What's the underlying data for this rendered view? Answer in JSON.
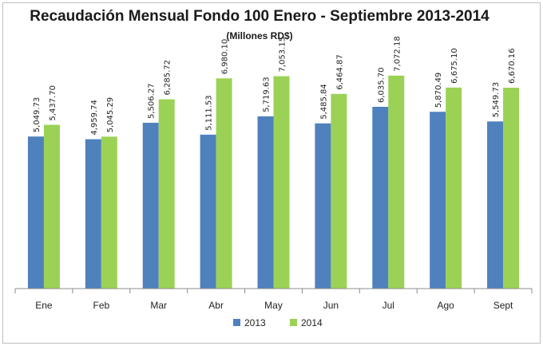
{
  "chart_data": {
    "type": "bar",
    "title": "Recaudación Mensual Fondo 100 Enero - Septiembre 2013-2014",
    "subtitle": "(Millones RD$)",
    "categories": [
      "Ene",
      "Feb",
      "Mar",
      "Abr",
      "May",
      "Jun",
      "Jul",
      "Ago",
      "Sept"
    ],
    "series": [
      {
        "name": "2013",
        "color": "#4f81bd",
        "values": [
          5049.73,
          4959.74,
          5506.27,
          5111.53,
          5719.63,
          5485.84,
          6035.7,
          5870.49,
          5549.73
        ],
        "labels": [
          "5,049.73",
          "4,959.74",
          "5,506.27",
          "5,111.53",
          "5,719.63",
          "5,485.84",
          "6,035.70",
          "5,870.49",
          "5,549.73"
        ]
      },
      {
        "name": "2014",
        "color": "#9bd255",
        "values": [
          5437.7,
          5045.29,
          6285.72,
          6980.1,
          7053.15,
          6464.87,
          7072.18,
          6675.1,
          6670.16
        ],
        "labels": [
          "5,437.70",
          "5,045.29",
          "6,285.72",
          "6,980.10",
          "7,053.15",
          "6,464.87",
          "7,072.18",
          "6,675.10",
          "6,670.16"
        ]
      }
    ],
    "ylim": [
      0,
      9000
    ],
    "legend_position": "bottom",
    "grid": false
  }
}
